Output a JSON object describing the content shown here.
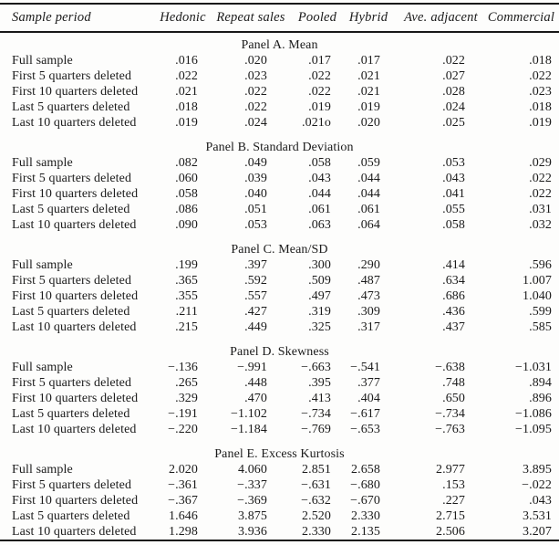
{
  "table": {
    "columns": [
      "Sample period",
      "Hedonic",
      "Repeat sales",
      "Pooled",
      "Hybrid",
      "Ave. adjacent",
      "Commercial"
    ],
    "row_labels": [
      "Full sample",
      "First 5 quarters deleted",
      "First 10 quarters deleted",
      "Last 5 quarters deleted",
      "Last 10 quarters deleted"
    ],
    "panels": [
      {
        "title": "Panel A. Mean",
        "rows": [
          {
            "label": "Full sample",
            "values": [
              ".016",
              ".020",
              ".017",
              ".017",
              ".022",
              ".018"
            ]
          },
          {
            "label": "First 5 quarters deleted",
            "values": [
              ".022",
              ".023",
              ".022",
              ".021",
              ".027",
              ".022"
            ]
          },
          {
            "label": "First 10 quarters deleted",
            "values": [
              ".021",
              ".022",
              ".022",
              ".021",
              ".028",
              ".023"
            ]
          },
          {
            "label": "Last 5 quarters deleted",
            "values": [
              ".018",
              ".022",
              ".019",
              ".019",
              ".024",
              ".018"
            ]
          },
          {
            "label": "Last 10 quarters deleted",
            "values": [
              ".019",
              ".024",
              ".021o",
              ".020",
              ".025",
              ".019"
            ]
          }
        ]
      },
      {
        "title": "Panel B. Standard Deviation",
        "rows": [
          {
            "label": "Full sample",
            "values": [
              ".082",
              ".049",
              ".058",
              ".059",
              ".053",
              ".029"
            ]
          },
          {
            "label": "First 5 quarters deleted",
            "values": [
              ".060",
              ".039",
              ".043",
              ".044",
              ".043",
              ".022"
            ]
          },
          {
            "label": "First 10 quarters deleted",
            "values": [
              ".058",
              ".040",
              ".044",
              ".044",
              ".041",
              ".022"
            ]
          },
          {
            "label": "Last 5 quarters deleted",
            "values": [
              ".086",
              ".051",
              ".061",
              ".061",
              ".055",
              ".031"
            ]
          },
          {
            "label": "Last 10 quarters deleted",
            "values": [
              ".090",
              ".053",
              ".063",
              ".064",
              ".058",
              ".032"
            ]
          }
        ]
      },
      {
        "title": "Panel C. Mean/SD",
        "rows": [
          {
            "label": "Full sample",
            "values": [
              ".199",
              ".397",
              ".300",
              ".290",
              ".414",
              ".596"
            ]
          },
          {
            "label": "First 5 quarters deleted",
            "values": [
              ".365",
              ".592",
              ".509",
              ".487",
              ".634",
              "1.007"
            ]
          },
          {
            "label": "First 10 quarters deleted",
            "values": [
              ".355",
              ".557",
              ".497",
              ".473",
              ".686",
              "1.040"
            ]
          },
          {
            "label": "Last 5 quarters deleted",
            "values": [
              ".211",
              ".427",
              ".319",
              ".309",
              ".436",
              ".599"
            ]
          },
          {
            "label": "Last 10 quarters deleted",
            "values": [
              ".215",
              ".449",
              ".325",
              ".317",
              ".437",
              ".585"
            ]
          }
        ]
      },
      {
        "title": "Panel D. Skewness",
        "rows": [
          {
            "label": "Full sample",
            "values": [
              "−.136",
              "−.991",
              "−.663",
              "−.541",
              "−.638",
              "−1.031"
            ]
          },
          {
            "label": "First 5 quarters deleted",
            "values": [
              ".265",
              ".448",
              ".395",
              ".377",
              ".748",
              ".894"
            ]
          },
          {
            "label": "First 10 quarters deleted",
            "values": [
              ".329",
              ".470",
              ".413",
              ".404",
              ".650",
              ".896"
            ]
          },
          {
            "label": "Last 5 quarters deleted",
            "values": [
              "−.191",
              "−1.102",
              "−.734",
              "−.617",
              "−.734",
              "−1.086"
            ]
          },
          {
            "label": "Last 10 quarters deleted",
            "values": [
              "−.220",
              "−1.184",
              "−.769",
              "−.653",
              "−.763",
              "−1.095"
            ]
          }
        ]
      },
      {
        "title": "Panel E. Excess Kurtosis",
        "rows": [
          {
            "label": "Full sample",
            "values": [
              "2.020",
              "4.060",
              "2.851",
              "2.658",
              "2.977",
              "3.895"
            ]
          },
          {
            "label": "First 5 quarters deleted",
            "values": [
              "−.361",
              "−.337",
              "−.631",
              "−.680",
              ".153",
              "−.022"
            ]
          },
          {
            "label": "First 10 quarters deleted",
            "values": [
              "−.367",
              "−.369",
              "−.632",
              "−.670",
              ".227",
              ".043"
            ]
          },
          {
            "label": "Last 5 quarters deleted",
            "values": [
              "1.646",
              "3.875",
              "2.520",
              "2.330",
              "2.715",
              "3.531"
            ]
          },
          {
            "label": "Last 10 quarters deleted",
            "values": [
              "1.298",
              "3.936",
              "2.330",
              "2.135",
              "2.506",
              "3.207"
            ]
          }
        ]
      }
    ],
    "colors": {
      "text": "#1b1b1b",
      "rule": "#181818",
      "background": "#fdfdfc"
    }
  }
}
